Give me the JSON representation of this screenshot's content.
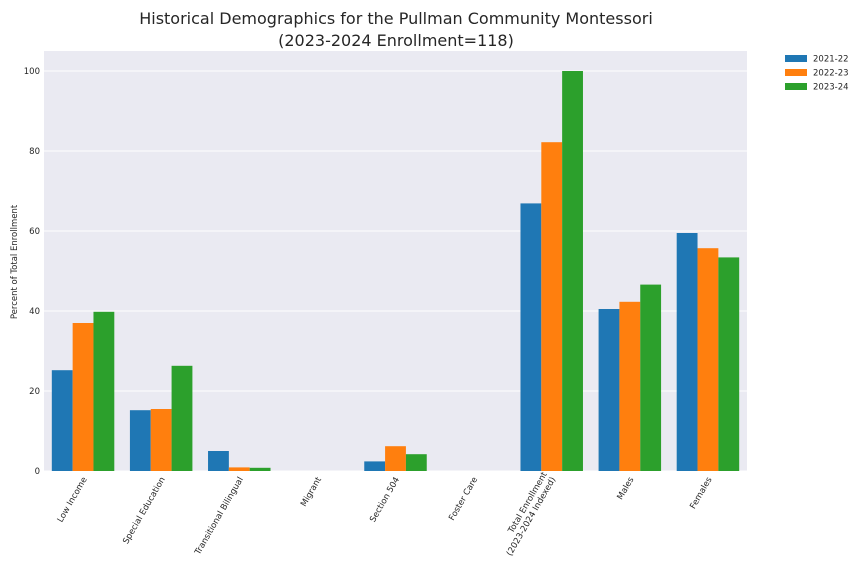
{
  "chart_data": {
    "type": "bar",
    "title": "Historical Demographics for the Pullman Community Montessori",
    "subtitle": "(2023-2024 Enrollment=118)",
    "xlabel": "",
    "ylabel": "Percent of Total Enrollment",
    "ylim": [
      0,
      105
    ],
    "yticks": [
      0,
      20,
      40,
      60,
      80,
      100
    ],
    "grid": true,
    "legend_position": "outside-top-right",
    "categories": [
      "Low Income",
      "Special Education",
      "Transitional Bilingual",
      "Migrant",
      "Section 504",
      "Foster Care",
      "Total Enrollment\n(2023-2024 Indexed)",
      "Males",
      "Females"
    ],
    "series": [
      {
        "name": "2021-22",
        "color": "#1f77b4",
        "values": [
          25.2,
          15.2,
          5.0,
          0,
          2.4,
          0,
          66.9,
          40.5,
          59.5
        ]
      },
      {
        "name": "2022-23",
        "color": "#ff7f0e",
        "values": [
          37.0,
          15.5,
          0.9,
          0,
          6.2,
          0,
          82.2,
          42.3,
          55.7
        ]
      },
      {
        "name": "2023-24",
        "color": "#2ca02c",
        "values": [
          39.8,
          26.3,
          0.8,
          0,
          4.2,
          0,
          100.0,
          46.6,
          53.4
        ]
      }
    ]
  }
}
